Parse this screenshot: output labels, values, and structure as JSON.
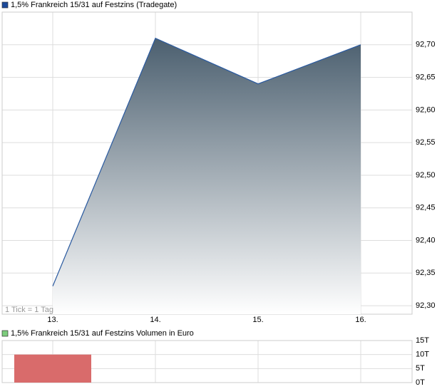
{
  "chart_data": [
    {
      "type": "area",
      "series": [
        {
          "name": "1,5% Frankreich 15/31 auf Festzins (Tradegate)",
          "color": "#2a5aa0",
          "legend_color": "#1c4a9a",
          "values": [
            92.33,
            92.71,
            92.64,
            92.7
          ]
        }
      ],
      "categories": [
        "13.",
        "14.",
        "15.",
        "16."
      ],
      "ylim": [
        92.287,
        92.75
      ],
      "yticks": [
        {
          "value": 92.3,
          "label": "92,30"
        },
        {
          "value": 92.35,
          "label": "92,35"
        },
        {
          "value": 92.4,
          "label": "92,40"
        },
        {
          "value": 92.45,
          "label": "92,45"
        },
        {
          "value": 92.5,
          "label": "92,50"
        },
        {
          "value": 92.55,
          "label": "92,55"
        },
        {
          "value": 92.6,
          "label": "92,60"
        },
        {
          "value": 92.65,
          "label": "92,65"
        },
        {
          "value": 92.7,
          "label": "92,70"
        }
      ],
      "annotation": "1 Tick = 1 Tag",
      "grid": true
    },
    {
      "type": "bar",
      "series": [
        {
          "name": "1,5% Frankreich 15/31 auf Festzins Volumen in Euro",
          "color": "#d96b6b",
          "legend_color": "#7ccc7c",
          "values": [
            10,
            0,
            0,
            0
          ]
        }
      ],
      "ylim": [
        0,
        15
      ],
      "yticks": [
        {
          "value": 0,
          "label": "0T"
        },
        {
          "value": 5,
          "label": "5T"
        },
        {
          "value": 10,
          "label": "10T"
        },
        {
          "value": 15,
          "label": "15T"
        }
      ],
      "grid": true
    }
  ]
}
